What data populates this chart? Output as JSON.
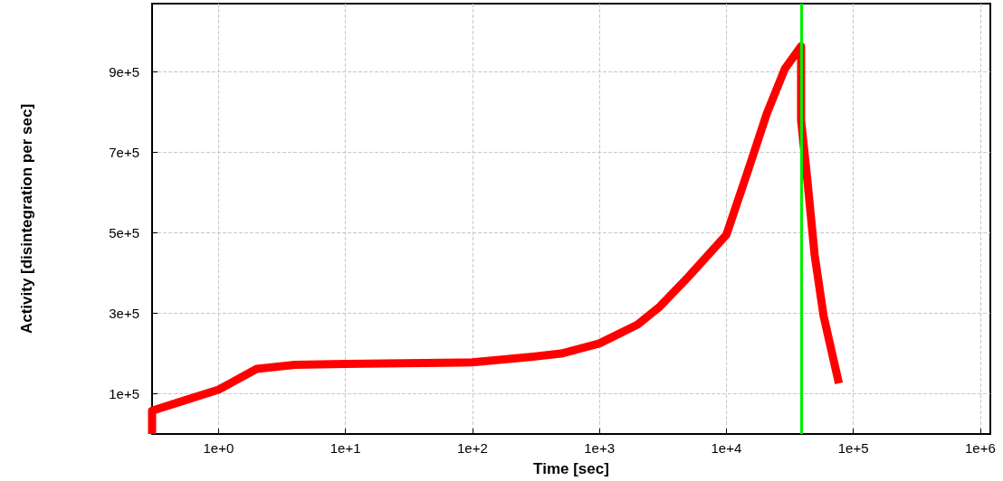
{
  "chart_data": {
    "type": "line",
    "xlabel": "Time [sec]",
    "ylabel": "Activity [disintegration per sec]",
    "series": [
      {
        "color": "#ff0000",
        "x": [
          0.3,
          0.3,
          0.5,
          1,
          2,
          4,
          10,
          100,
          300,
          500,
          1000,
          2000,
          3000,
          5000,
          10000,
          10800,
          15000,
          20800,
          28900,
          38800,
          38800,
          38800,
          43500,
          49600,
          58300,
          77000
        ],
        "values": [
          0,
          58000,
          80000,
          110000,
          162000,
          172000,
          174000,
          178000,
          192000,
          200000,
          225000,
          272000,
          317000,
          390000,
          495000,
          526000,
          660000,
          796000,
          908000,
          964000,
          796000,
          780000,
          630000,
          445000,
          294000,
          126000
        ]
      }
    ],
    "xlim": [
      0.3,
      1200000
    ],
    "ylim": [
      0,
      1070000
    ],
    "xticks": [
      {
        "value": 1,
        "label": "1e+0"
      },
      {
        "value": 10,
        "label": "1e+1"
      },
      {
        "value": 100,
        "label": "1e+2"
      },
      {
        "value": 1000,
        "label": "1e+3"
      },
      {
        "value": 10000,
        "label": "1e+4"
      },
      {
        "value": 100000,
        "label": "1e+5"
      },
      {
        "value": 1000000,
        "label": "1e+6"
      }
    ],
    "yticks": [
      {
        "value": 100000,
        "label": "1e+5"
      },
      {
        "value": 300000,
        "label": "3e+5"
      },
      {
        "value": 500000,
        "label": "5e+5"
      },
      {
        "value": 700000,
        "label": "7e+5"
      },
      {
        "value": 900000,
        "label": "9e+5"
      }
    ],
    "log": "x",
    "grid": true,
    "marker": "none",
    "line_style": "solid",
    "ref_lines": [
      {
        "axis": "x",
        "value": 38800,
        "color": "#00ee00"
      }
    ]
  }
}
